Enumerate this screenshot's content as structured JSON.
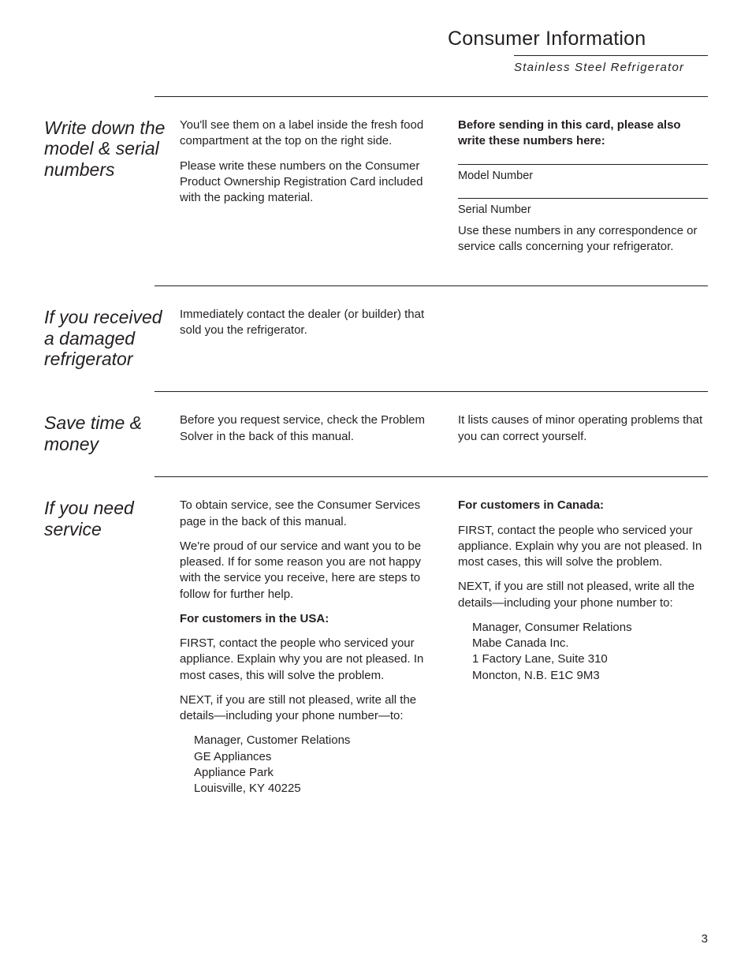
{
  "header": {
    "title": "Consumer Information",
    "subtitle": "Stainless Steel Refrigerator"
  },
  "sections": {
    "s1": {
      "heading": "Write down the model & serial numbers",
      "left": {
        "p1": "You'll see them on a label inside the fresh food compartment at the top on the right side.",
        "p2": "Please write these numbers on the Consumer Product Ownership Registration Card included with the packing material."
      },
      "right": {
        "bold1": "Before sending in this card, please also write these numbers here:",
        "label_model": "Model Number",
        "label_serial": "Serial Number",
        "p_note": "Use these numbers in any correspondence or service calls concerning your refrigerator."
      }
    },
    "s2": {
      "heading": "If you received a damaged refrigerator",
      "left": {
        "p1": "Immediately contact the dealer (or builder) that sold you the refrigerator."
      }
    },
    "s3": {
      "heading": "Save time & money",
      "left": {
        "p1": "Before you request service, check the Problem Solver in the back of this manual."
      },
      "right": {
        "p1": "It lists causes of minor operating problems that you can correct yourself."
      }
    },
    "s4": {
      "heading": "If you need service",
      "left": {
        "p1": "To obtain service, see the Consumer Services page in the back of this manual.",
        "p2": "We're proud of our service and want you to be pleased. If for some reason you are not happy with the service you receive, here are steps to follow for further help.",
        "bold_usa": "For customers in the USA:",
        "p3": "FIRST, contact the people who serviced your appliance. Explain why you are not pleased. In most cases, this will solve the problem.",
        "p4": "NEXT, if you are still not pleased, write all the details—including your phone number—to:",
        "addr1": "Manager, Customer Relations",
        "addr2": "GE Appliances",
        "addr3": "Appliance Park",
        "addr4": "Louisville, KY 40225"
      },
      "right": {
        "bold_can": "For customers in Canada:",
        "p1": "FIRST, contact the people who serviced your appliance. Explain why you are not pleased. In most cases, this will solve the problem.",
        "p2": "NEXT, if you are still not pleased, write all the details—including your phone number to:",
        "addr1": "Manager, Consumer Relations",
        "addr2": "Mabe Canada Inc.",
        "addr3": "1 Factory Lane, Suite 310",
        "addr4": "Moncton, N.B. E1C 9M3"
      }
    }
  },
  "page_number": "3"
}
